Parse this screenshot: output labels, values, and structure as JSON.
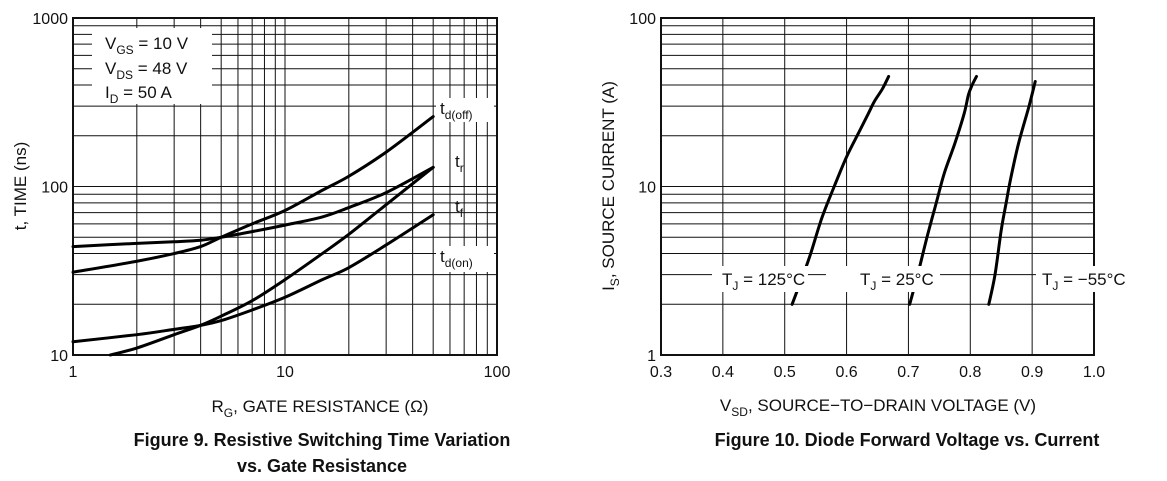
{
  "chart_data": [
    {
      "type": "line",
      "caption_line1": "Figure 9. Resistive Switching Time Variation",
      "caption_line2": "vs. Gate Resistance",
      "xlabel": {
        "main": "R",
        "sub": "G",
        "rest": ", GATE RESISTANCE (Ω)"
      },
      "ylabel": "t, TIME (ns)",
      "xscale": "log",
      "yscale": "log",
      "xlim": [
        1,
        100
      ],
      "ylim": [
        10,
        1000
      ],
      "grid": true,
      "xticks": [
        "1",
        "10",
        "100"
      ],
      "yticks": [
        "10",
        "100",
        "1000"
      ],
      "conditions": [
        {
          "main": "V",
          "sub": "GS",
          "rest": " = 10 V"
        },
        {
          "main": "V",
          "sub": "DS",
          "rest": " = 48 V"
        },
        {
          "main": "I",
          "sub": "D",
          "rest": " = 50 A"
        }
      ],
      "series": [
        {
          "name": {
            "main": "t",
            "sub": "d(off)"
          },
          "x": [
            1,
            2,
            3,
            4,
            5,
            7,
            10,
            15,
            20,
            30,
            50
          ],
          "y": [
            31,
            36,
            40,
            44,
            50,
            60,
            72,
            95,
            115,
            160,
            260
          ]
        },
        {
          "name": {
            "main": "t",
            "sub": "r"
          },
          "x": [
            1,
            2,
            3,
            4,
            5,
            7,
            10,
            15,
            20,
            30,
            50
          ],
          "y": [
            44,
            46,
            47,
            48,
            50,
            54,
            59,
            66,
            75,
            92,
            130
          ]
        },
        {
          "name": {
            "main": "t",
            "sub": "f"
          },
          "x": [
            1.5,
            2,
            3,
            4,
            5,
            7,
            10,
            15,
            20,
            30,
            50
          ],
          "y": [
            10,
            11,
            13.2,
            15,
            17,
            21,
            28,
            40,
            52,
            78,
            130
          ]
        },
        {
          "name": {
            "main": "t",
            "sub": "d(on)"
          },
          "x": [
            1,
            2,
            3,
            4,
            5,
            7,
            10,
            15,
            20,
            30,
            50
          ],
          "y": [
            12,
            13.2,
            14.2,
            15,
            16,
            18.5,
            22,
            28,
            33,
            45,
            68
          ]
        }
      ]
    },
    {
      "type": "line",
      "caption_line1": "Figure 10. Diode Forward Voltage vs. Current",
      "xlabel": {
        "main": "V",
        "sub": "SD",
        "rest": ", SOURCE−TO−DRAIN VOLTAGE (V)"
      },
      "ylabel": {
        "main": "I",
        "sub": "S",
        "rest": ", SOURCE CURRENT (A)"
      },
      "xscale": "linear",
      "yscale": "log",
      "xlim": [
        0.3,
        1.0
      ],
      "ylim": [
        1,
        100
      ],
      "grid": true,
      "xticks": [
        "0.3",
        "0.4",
        "0.5",
        "0.6",
        "0.7",
        "0.8",
        "0.9",
        "1.0"
      ],
      "yticks": [
        "1",
        "10",
        "100"
      ],
      "series": [
        {
          "name": {
            "main": "T",
            "sub": "J",
            "rest": " = 125°C"
          },
          "x": [
            0.512,
            0.53,
            0.542,
            0.56,
            0.58,
            0.6,
            0.62,
            0.635,
            0.645,
            0.658,
            0.668
          ],
          "y": [
            2,
            3,
            4,
            6.5,
            10,
            15,
            21,
            27,
            32,
            38,
            45
          ]
        },
        {
          "name": {
            "main": "T",
            "sub": "J",
            "rest": " = 25°C"
          },
          "x": [
            0.702,
            0.715,
            0.73,
            0.745,
            0.758,
            0.775,
            0.79,
            0.797,
            0.803,
            0.81
          ],
          "y": [
            2,
            3,
            5,
            8,
            12,
            18,
            27,
            35,
            40,
            45
          ]
        },
        {
          "name": {
            "main": "T",
            "sub": "J",
            "rest": " = −55°C"
          },
          "x": [
            0.83,
            0.84,
            0.85,
            0.858,
            0.865,
            0.878,
            0.895,
            0.905
          ],
          "y": [
            2,
            3,
            5.5,
            8,
            11,
            18,
            30,
            42
          ]
        }
      ]
    }
  ]
}
